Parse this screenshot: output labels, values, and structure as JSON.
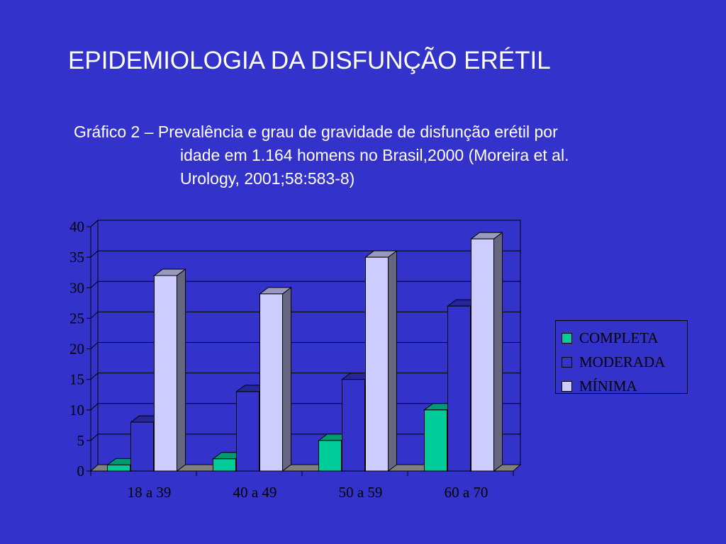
{
  "slide": {
    "title": "EPIDEMIOLOGIA DA DISFUNÇÃO ERÉTIL",
    "caption_line1": "Gráfico 2 – Prevalência e grau de gravidade de disfunção erétil por",
    "caption_line2": "idade em 1.164 homens no Brasil,2000 (Moreira et al.",
    "caption_line3": "Urology, 2001;58:583-8)"
  },
  "chart_data": {
    "type": "bar",
    "categories": [
      "18 a 39",
      "40 a 49",
      "50 a 59",
      "60 a 70"
    ],
    "series": [
      {
        "name": "COMPLETA",
        "values": [
          1,
          2,
          5,
          10
        ],
        "color": "#00cc99"
      },
      {
        "name": "MODERADA",
        "values": [
          8,
          13,
          15,
          27
        ],
        "color": "#3333cc"
      },
      {
        "name": "MÍNIMA",
        "values": [
          32,
          29,
          35,
          38
        ],
        "color": "#ccccff"
      }
    ],
    "ylim": [
      0,
      40
    ],
    "yticks": [
      0,
      5,
      10,
      15,
      20,
      25,
      30,
      35,
      40
    ],
    "grid": true,
    "legend_position": "right",
    "title": "",
    "xlabel": "",
    "ylabel": ""
  }
}
